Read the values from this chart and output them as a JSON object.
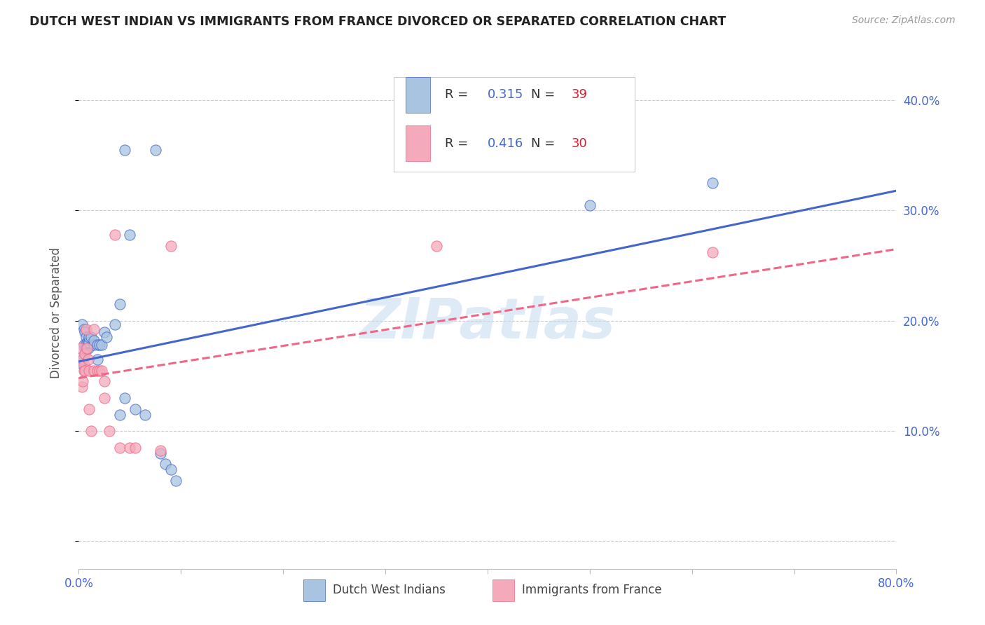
{
  "title": "DUTCH WEST INDIAN VS IMMIGRANTS FROM FRANCE DIVORCED OR SEPARATED CORRELATION CHART",
  "source": "Source: ZipAtlas.com",
  "ylabel_left": "Divorced or Separated",
  "xlim": [
    0.0,
    0.8
  ],
  "ylim": [
    -0.025,
    0.44
  ],
  "watermark": "ZIPatlas",
  "blue_R": "R = 0.315",
  "blue_N": "N = 39",
  "pink_R": "R = 0.416",
  "pink_N": "N = 30",
  "legend_label_blue": "Dutch West Indians",
  "legend_label_pink": "Immigrants from France",
  "blue_color": "#A8C4E0",
  "pink_color": "#F4AABB",
  "blue_line_color": "#4466CC",
  "pink_line_color": "#EE6688",
  "blue_scatter": [
    [
      0.002,
      0.162
    ],
    [
      0.003,
      0.197
    ],
    [
      0.004,
      0.168
    ],
    [
      0.005,
      0.192
    ],
    [
      0.005,
      0.178
    ],
    [
      0.006,
      0.175
    ],
    [
      0.006,
      0.19
    ],
    [
      0.007,
      0.185
    ],
    [
      0.007,
      0.175
    ],
    [
      0.008,
      0.18
    ],
    [
      0.008,
      0.18
    ],
    [
      0.009,
      0.18
    ],
    [
      0.009,
      0.175
    ],
    [
      0.01,
      0.18
    ],
    [
      0.01,
      0.185
    ],
    [
      0.012,
      0.185
    ],
    [
      0.015,
      0.178
    ],
    [
      0.015,
      0.182
    ],
    [
      0.018,
      0.178
    ],
    [
      0.018,
      0.165
    ],
    [
      0.02,
      0.178
    ],
    [
      0.022,
      0.178
    ],
    [
      0.025,
      0.19
    ],
    [
      0.027,
      0.185
    ],
    [
      0.035,
      0.197
    ],
    [
      0.04,
      0.215
    ],
    [
      0.04,
      0.115
    ],
    [
      0.045,
      0.13
    ],
    [
      0.045,
      0.355
    ],
    [
      0.05,
      0.278
    ],
    [
      0.055,
      0.12
    ],
    [
      0.065,
      0.115
    ],
    [
      0.075,
      0.355
    ],
    [
      0.08,
      0.08
    ],
    [
      0.085,
      0.07
    ],
    [
      0.09,
      0.065
    ],
    [
      0.095,
      0.055
    ],
    [
      0.62,
      0.325
    ],
    [
      0.5,
      0.305
    ]
  ],
  "pink_scatter": [
    [
      0.002,
      0.175
    ],
    [
      0.003,
      0.14
    ],
    [
      0.004,
      0.165
    ],
    [
      0.004,
      0.145
    ],
    [
      0.005,
      0.16
    ],
    [
      0.005,
      0.155
    ],
    [
      0.006,
      0.17
    ],
    [
      0.006,
      0.155
    ],
    [
      0.007,
      0.192
    ],
    [
      0.008,
      0.175
    ],
    [
      0.009,
      0.165
    ],
    [
      0.01,
      0.155
    ],
    [
      0.01,
      0.12
    ],
    [
      0.012,
      0.1
    ],
    [
      0.015,
      0.192
    ],
    [
      0.015,
      0.155
    ],
    [
      0.018,
      0.155
    ],
    [
      0.02,
      0.155
    ],
    [
      0.022,
      0.155
    ],
    [
      0.025,
      0.145
    ],
    [
      0.025,
      0.13
    ],
    [
      0.03,
      0.1
    ],
    [
      0.035,
      0.278
    ],
    [
      0.04,
      0.085
    ],
    [
      0.05,
      0.085
    ],
    [
      0.055,
      0.085
    ],
    [
      0.08,
      0.082
    ],
    [
      0.09,
      0.268
    ],
    [
      0.35,
      0.268
    ],
    [
      0.62,
      0.262
    ]
  ],
  "blue_trend_x": [
    0.0,
    0.8
  ],
  "blue_trend_y": [
    0.163,
    0.318
  ],
  "pink_trend_x": [
    0.0,
    0.8
  ],
  "pink_trend_y": [
    0.148,
    0.265
  ]
}
